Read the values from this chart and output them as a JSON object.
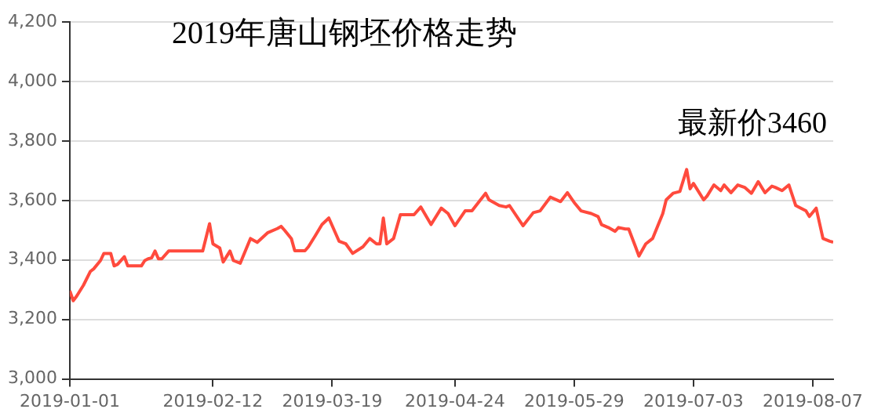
{
  "chart_data": {
    "type": "line",
    "title": "2019年唐山钢坯价格走势",
    "annotations": [
      "最新价3460"
    ],
    "x": [
      "2019-01-01",
      "2019-01-02",
      "2019-01-03",
      "2019-01-05",
      "2019-01-07",
      "2019-01-08",
      "2019-01-10",
      "2019-01-11",
      "2019-01-13",
      "2019-01-14",
      "2019-01-15",
      "2019-01-17",
      "2019-01-18",
      "2019-01-22",
      "2019-01-23",
      "2019-01-24",
      "2019-01-25",
      "2019-01-26",
      "2019-01-27",
      "2019-01-28",
      "2019-01-30",
      "2019-02-09",
      "2019-02-11",
      "2019-02-12",
      "2019-02-14",
      "2019-02-15",
      "2019-02-17",
      "2019-02-18",
      "2019-02-20",
      "2019-02-23",
      "2019-02-25",
      "2019-02-28",
      "2019-03-03",
      "2019-03-04",
      "2019-03-05",
      "2019-03-07",
      "2019-03-08",
      "2019-03-11",
      "2019-03-12",
      "2019-03-14",
      "2019-03-16",
      "2019-03-18",
      "2019-03-21",
      "2019-03-23",
      "2019-03-25",
      "2019-03-28",
      "2019-03-30",
      "2019-04-01",
      "2019-04-02",
      "2019-04-03",
      "2019-04-04",
      "2019-04-06",
      "2019-04-08",
      "2019-04-12",
      "2019-04-14",
      "2019-04-17",
      "2019-04-20",
      "2019-04-22",
      "2019-04-24",
      "2019-04-27",
      "2019-04-29",
      "2019-05-03",
      "2019-05-04",
      "2019-05-07",
      "2019-05-09",
      "2019-05-10",
      "2019-05-14",
      "2019-05-17",
      "2019-05-19",
      "2019-05-22",
      "2019-05-25",
      "2019-05-27",
      "2019-05-29",
      "2019-05-31",
      "2019-06-03",
      "2019-06-05",
      "2019-06-06",
      "2019-06-08",
      "2019-06-10",
      "2019-06-11",
      "2019-06-13",
      "2019-06-14",
      "2019-06-16",
      "2019-06-17",
      "2019-06-19",
      "2019-06-21",
      "2019-06-24",
      "2019-06-25",
      "2019-06-27",
      "2019-06-29",
      "2019-07-01",
      "2019-07-02",
      "2019-07-03",
      "2019-07-06",
      "2019-07-07",
      "2019-07-09",
      "2019-07-11",
      "2019-07-12",
      "2019-07-14",
      "2019-07-16",
      "2019-07-18",
      "2019-07-20",
      "2019-07-22",
      "2019-07-24",
      "2019-07-26",
      "2019-07-27",
      "2019-07-29",
      "2019-07-31",
      "2019-08-02",
      "2019-08-05",
      "2019-08-06",
      "2019-08-08",
      "2019-08-10",
      "2019-08-12",
      "2019-08-13"
    ],
    "series": [
      {
        "color": "#ff4a3d",
        "values": [
          3296,
          3263,
          3278,
          3315,
          3361,
          3370,
          3398,
          3422,
          3422,
          3380,
          3385,
          3411,
          3380,
          3380,
          3398,
          3404,
          3407,
          3430,
          3404,
          3404,
          3430,
          3430,
          3522,
          3454,
          3440,
          3393,
          3430,
          3398,
          3389,
          3472,
          3459,
          3491,
          3506,
          3513,
          3500,
          3472,
          3431,
          3431,
          3444,
          3481,
          3519,
          3541,
          3463,
          3454,
          3422,
          3444,
          3472,
          3454,
          3454,
          3541,
          3454,
          3472,
          3552,
          3552,
          3578,
          3519,
          3574,
          3556,
          3515,
          3565,
          3565,
          3624,
          3602,
          3583,
          3578,
          3583,
          3515,
          3559,
          3565,
          3611,
          3596,
          3626,
          3593,
          3565,
          3556,
          3546,
          3519,
          3509,
          3496,
          3509,
          3504,
          3504,
          3444,
          3413,
          3454,
          3472,
          3556,
          3602,
          3624,
          3630,
          3704,
          3639,
          3657,
          3602,
          3615,
          3652,
          3633,
          3652,
          3626,
          3652,
          3644,
          3624,
          3663,
          3626,
          3648,
          3644,
          3633,
          3652,
          3583,
          3565,
          3546,
          3574,
          3472,
          3463,
          3460
        ]
      }
    ],
    "xlim": [
      "2019-01-01",
      "2019-08-13"
    ],
    "xticks": [
      "2019-01-01",
      "2019-02-12",
      "2019-03-19",
      "2019-04-24",
      "2019-05-29",
      "2019-07-03",
      "2019-08-07"
    ],
    "ylim": [
      3000,
      4200
    ],
    "yticks": [
      {
        "value": 3000,
        "label": "3,000"
      },
      {
        "value": 3200,
        "label": "3,200"
      },
      {
        "value": 3400,
        "label": "3,400"
      },
      {
        "value": 3600,
        "label": "3,600"
      },
      {
        "value": 3800,
        "label": "3,800"
      },
      {
        "value": 4000,
        "label": "4,000"
      },
      {
        "value": 4200,
        "label": "4,200"
      }
    ],
    "grid": "y",
    "legend": false,
    "marker": "none",
    "line_style": "solid"
  }
}
